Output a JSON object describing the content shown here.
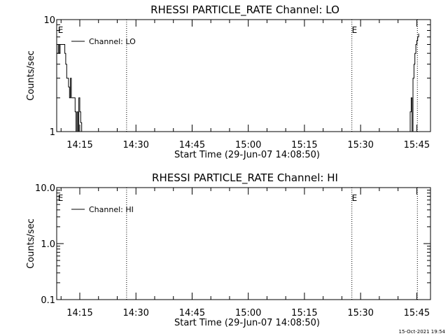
{
  "footer_timestamp": "15-Oct-2021 19:54",
  "chart_data": [
    {
      "type": "line",
      "title": "RHESSI PARTICLE_RATE Channel: LO",
      "xlabel": "Start Time (29-Jun-07 14:08:50)",
      "ylabel": "Counts/sec",
      "y_scale": "log",
      "ylim": [
        1,
        10
      ],
      "y_ticks": [
        1,
        10
      ],
      "y_tick_labels": [
        "1",
        "10"
      ],
      "xlim": [
        "14:08:50",
        "15:48:40"
      ],
      "x_ticks": [
        "14:15",
        "14:30",
        "14:45",
        "15:00",
        "15:15",
        "15:30",
        "15:45"
      ],
      "event_markers": [
        {
          "time": "14:09:10",
          "label": "E",
          "line": false
        },
        {
          "time": "14:27:30",
          "label": "",
          "line": true
        },
        {
          "time": "15:27:40",
          "label": "E",
          "line": true
        },
        {
          "time": "15:45:10",
          "label": "",
          "line": true
        }
      ],
      "legend": {
        "position": "top-left",
        "entries": [
          "Channel: LO"
        ]
      },
      "series": [
        {
          "name": "Channel: LO",
          "segments": [
            {
              "x": [
                "14:09:00",
                "14:09:15",
                "14:09:30",
                "14:09:45",
                "14:10:00",
                "14:10:15",
                "14:10:30",
                "14:10:45",
                "14:11:00",
                "14:11:15",
                "14:11:30",
                "14:11:45",
                "14:12:00",
                "14:12:15",
                "14:12:30",
                "14:12:45",
                "14:13:00",
                "14:13:15",
                "14:13:30",
                "14:13:45",
                "14:14:00",
                "14:14:15",
                "14:14:30",
                "14:14:45",
                "14:15:00",
                "14:15:15",
                "14:15:30",
                "14:15:45"
              ],
              "y": [
                5,
                6,
                5,
                6,
                6,
                6,
                6,
                6,
                5,
                4,
                3,
                3,
                2.5,
                2,
                3,
                2,
                2,
                2,
                2,
                1.5,
                1,
                1.5,
                1,
                2,
                1.5,
                1.2,
                1,
                1
              ]
            },
            {
              "x": [
                "15:43:00",
                "15:43:15",
                "15:43:30",
                "15:43:45",
                "15:44:00",
                "15:44:15",
                "15:44:30",
                "15:44:45",
                "15:45:00",
                "15:45:15",
                "15:45:30"
              ],
              "y": [
                1,
                1.5,
                2,
                1,
                3,
                4,
                5,
                6,
                6.5,
                7,
                7.5
              ]
            }
          ]
        }
      ]
    },
    {
      "type": "line",
      "title": "RHESSI PARTICLE_RATE Channel: HI",
      "xlabel": "Start Time (29-Jun-07 14:08:50)",
      "ylabel": "Counts/sec",
      "y_scale": "log",
      "ylim": [
        0.1,
        10
      ],
      "y_ticks": [
        0.1,
        1,
        10
      ],
      "y_tick_labels": [
        "0.1",
        "1.0",
        "10.0"
      ],
      "xlim": [
        "14:08:50",
        "15:48:40"
      ],
      "x_ticks": [
        "14:15",
        "14:30",
        "14:45",
        "15:00",
        "15:15",
        "15:30",
        "15:45"
      ],
      "event_markers": [
        {
          "time": "14:09:10",
          "label": "E",
          "line": false
        },
        {
          "time": "14:27:30",
          "label": "",
          "line": true
        },
        {
          "time": "15:27:40",
          "label": "E",
          "line": true
        },
        {
          "time": "15:45:10",
          "label": "",
          "line": true
        }
      ],
      "legend": {
        "position": "top-left",
        "entries": [
          "Channel: HI"
        ]
      },
      "series": [
        {
          "name": "Channel: HI",
          "segments": []
        }
      ]
    }
  ]
}
